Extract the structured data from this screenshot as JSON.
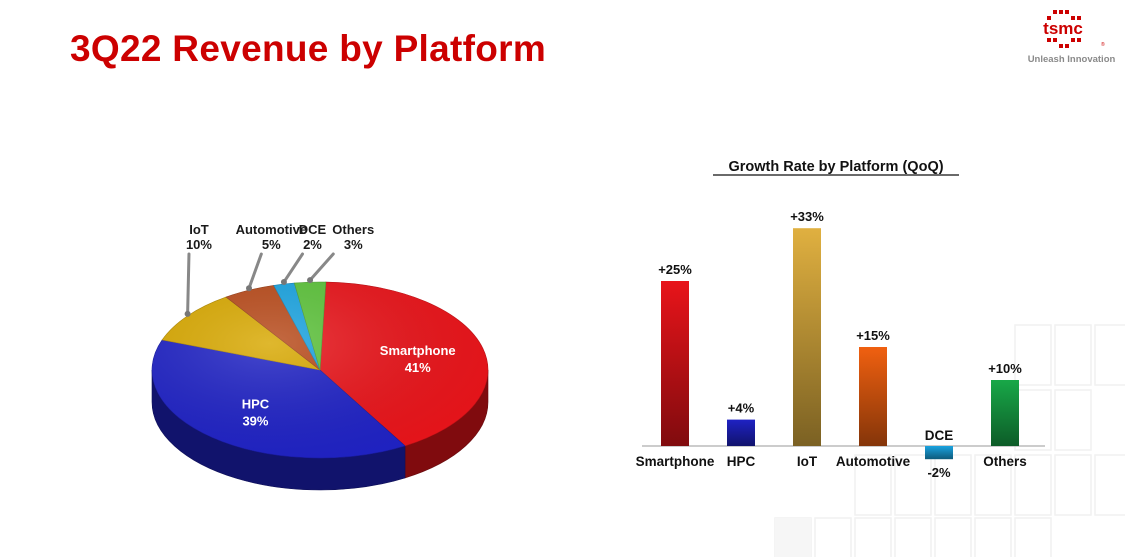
{
  "slide": {
    "title": "3Q22 Revenue by Platform"
  },
  "logo": {
    "brand": "tsmc",
    "tagline": "Unleash Innovation"
  },
  "colors": {
    "title": "#cc0000",
    "smartphone": "#e8141a",
    "hpc": "#1f22c4",
    "iot": "#d8a800",
    "automotive": "#b84a1a",
    "dce": "#1aa3e0",
    "others": "#5cc23a"
  },
  "chart_data": [
    {
      "type": "pie",
      "title": "",
      "slices": [
        {
          "name": "Smartphone",
          "value": 41,
          "label": "41%",
          "color": "#e8141a"
        },
        {
          "name": "HPC",
          "value": 39,
          "label": "39%",
          "color": "#1f22c4"
        },
        {
          "name": "IoT",
          "value": 10,
          "label": "10%",
          "color": "#d8a800"
        },
        {
          "name": "Automotive",
          "value": 5,
          "label": "5%",
          "color": "#b84a1a"
        },
        {
          "name": "DCE",
          "value": 2,
          "label": "2%",
          "color": "#1aa3e0"
        },
        {
          "name": "Others",
          "value": 3,
          "label": "3%",
          "color": "#5cc23a"
        }
      ]
    },
    {
      "type": "bar",
      "title": "Growth Rate by Platform (QoQ)",
      "categories": [
        "Smartphone",
        "HPC",
        "IoT",
        "Automotive",
        "DCE",
        "Others"
      ],
      "values": [
        25,
        4,
        33,
        15,
        -2,
        10
      ],
      "value_labels": [
        "+25%",
        "+4%",
        "+33%",
        "+15%",
        "-2%",
        "+10%"
      ],
      "colors": [
        "#e8141a",
        "#1f22c4",
        "#e0b040",
        "#f06010",
        "#1aa3e0",
        "#18a848"
      ],
      "ylabel": "",
      "xlabel": "",
      "grid": false
    }
  ]
}
